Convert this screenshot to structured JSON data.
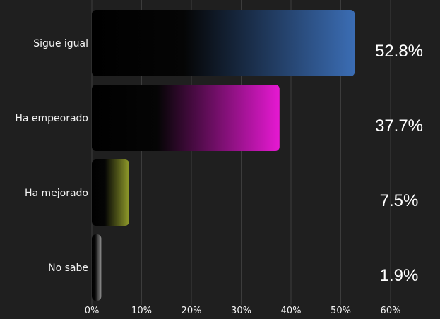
{
  "chart_data": {
    "type": "bar",
    "orientation": "horizontal",
    "categories": [
      "Sigue igual",
      "Ha empeorado",
      "Ha mejorado",
      "No sabe"
    ],
    "values": [
      52.8,
      37.7,
      7.5,
      1.9
    ],
    "value_labels": [
      "52.8%",
      "37.7%",
      "7.5%",
      "1.9%"
    ],
    "bar_colors": [
      "#3b6db4",
      "#e619d2",
      "#8f9a2a",
      "#8f8f8f"
    ],
    "xlim": [
      0,
      60
    ],
    "x_ticks": [
      0,
      10,
      20,
      30,
      40,
      50,
      60
    ],
    "x_tick_labels": [
      "0%",
      "10%",
      "20%",
      "30%",
      "40%",
      "50%",
      "60%"
    ],
    "grid": true,
    "legend": "none",
    "title": "",
    "xlabel": "",
    "ylabel": ""
  },
  "colors": {
    "background": "#1f1f1f",
    "gridline": "#3c3c3c",
    "text": "#f2f2f2"
  }
}
